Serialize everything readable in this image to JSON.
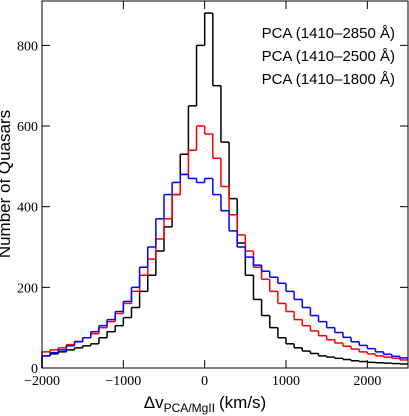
{
  "chart_data": {
    "type": "histogram",
    "x_label": {
      "main": "Δv",
      "sub": "PCA/MgII",
      "unit": "(km/s)"
    },
    "y_label": "Number of Quasars",
    "bins": [
      -2000,
      -1900,
      -1800,
      -1700,
      -1600,
      -1500,
      -1400,
      -1300,
      -1200,
      -1100,
      -1000,
      -900,
      -800,
      -700,
      -600,
      -500,
      -400,
      -300,
      -200,
      -100,
      0,
      100,
      200,
      300,
      400,
      500,
      600,
      700,
      800,
      900,
      1000,
      1100,
      1200,
      1300,
      1400,
      1500,
      1600,
      1700,
      1800,
      1900,
      2000,
      2100,
      2200,
      2300,
      2400,
      2500
    ],
    "series": [
      {
        "name": "PCA (1410–2850 Å)",
        "color": "#000000",
        "values": [
          30,
          35,
          40,
          45,
          50,
          55,
          60,
          75,
          90,
          105,
          125,
          150,
          190,
          230,
          290,
          350,
          430,
          530,
          650,
          800,
          880,
          700,
          560,
          420,
          310,
          230,
          170,
          130,
          100,
          75,
          60,
          50,
          42,
          36,
          30,
          27,
          24,
          21,
          18,
          16,
          14,
          13,
          12,
          11,
          10
        ]
      },
      {
        "name": "PCA (1410–2500 Å)",
        "color": "#ff0000",
        "values": [
          40,
          45,
          50,
          58,
          66,
          75,
          85,
          100,
          115,
          135,
          160,
          190,
          230,
          270,
          320,
          370,
          430,
          480,
          540,
          600,
          580,
          520,
          450,
          380,
          330,
          290,
          250,
          220,
          190,
          160,
          140,
          120,
          105,
          92,
          80,
          70,
          62,
          54,
          47,
          40,
          35,
          30,
          27,
          24,
          20
        ]
      },
      {
        "name": "PCA (1410–1800 Å)",
        "color": "#0000ff",
        "values": [
          30,
          38,
          45,
          55,
          65,
          75,
          90,
          105,
          120,
          140,
          165,
          200,
          250,
          300,
          370,
          430,
          460,
          480,
          470,
          460,
          470,
          430,
          390,
          340,
          300,
          275,
          255,
          240,
          225,
          210,
          190,
          170,
          150,
          130,
          115,
          100,
          88,
          76,
          65,
          56,
          48,
          40,
          34,
          29,
          25
        ]
      }
    ],
    "xlim": [
      -2000,
      2500
    ],
    "ylim": [
      0,
      910
    ],
    "xticks": [
      {
        "value": -2000,
        "label": "−2000"
      },
      {
        "value": -1000,
        "label": "−1000"
      },
      0,
      1000,
      2000
    ],
    "yticks": [
      0,
      200,
      400,
      600,
      800
    ]
  }
}
